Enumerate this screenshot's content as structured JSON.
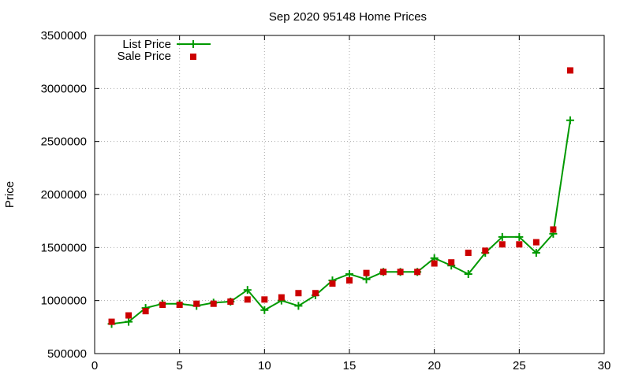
{
  "chart_data": {
    "type": "line",
    "title": "Sep 2020 95148 Home Prices",
    "xlabel": "",
    "ylabel": "Price",
    "xlim": [
      0,
      30
    ],
    "ylim": [
      500000,
      3500000
    ],
    "x_ticks": [
      0,
      5,
      10,
      15,
      20,
      25,
      30
    ],
    "y_ticks": [
      500000,
      1000000,
      1500000,
      2000000,
      2500000,
      3000000,
      3500000
    ],
    "grid": true,
    "legend_position": "top-left",
    "series": [
      {
        "name": "List Price",
        "style": "line with plus markers",
        "color": "#009900",
        "x": [
          1,
          2,
          3,
          4,
          5,
          6,
          7,
          8,
          9,
          10,
          11,
          12,
          13,
          14,
          15,
          16,
          17,
          18,
          19,
          20,
          21,
          22,
          23,
          24,
          25,
          26,
          27,
          28
        ],
        "values": [
          780000,
          800000,
          930000,
          970000,
          970000,
          950000,
          980000,
          990000,
          1100000,
          910000,
          1000000,
          950000,
          1050000,
          1190000,
          1250000,
          1200000,
          1270000,
          1270000,
          1270000,
          1400000,
          1330000,
          1250000,
          1450000,
          1600000,
          1600000,
          1450000,
          1630000,
          2700000
        ]
      },
      {
        "name": "Sale Price",
        "style": "square markers",
        "color": "#cc0000",
        "x": [
          1,
          2,
          3,
          4,
          5,
          6,
          7,
          8,
          9,
          10,
          11,
          12,
          13,
          14,
          15,
          16,
          17,
          18,
          19,
          20,
          21,
          22,
          23,
          24,
          25,
          26,
          27,
          28
        ],
        "values": [
          800000,
          860000,
          900000,
          960000,
          960000,
          970000,
          970000,
          990000,
          1010000,
          1010000,
          1030000,
          1070000,
          1070000,
          1160000,
          1190000,
          1260000,
          1270000,
          1270000,
          1270000,
          1350000,
          1360000,
          1450000,
          1470000,
          1530000,
          1530000,
          1550000,
          1670000,
          3170000
        ]
      }
    ]
  }
}
